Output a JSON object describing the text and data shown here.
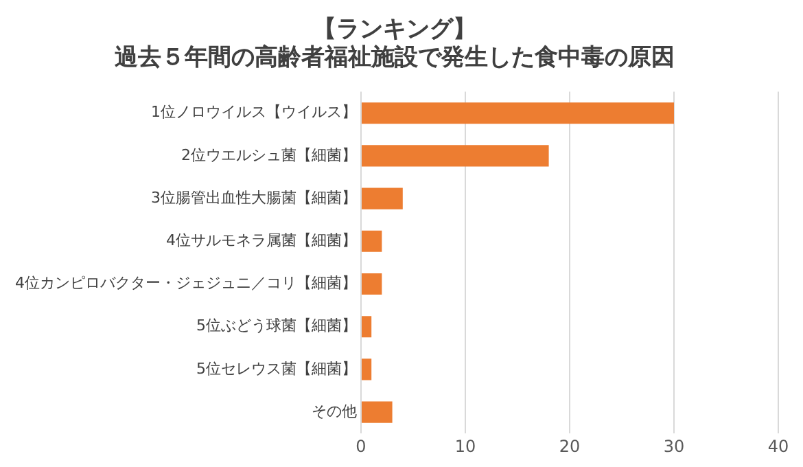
{
  "chart_data": {
    "type": "bar",
    "orientation": "horizontal",
    "title": "【ランキング】",
    "subtitle": "過去５年間の高齢者福祉施設で発生した食中毒の原因",
    "categories": [
      "1位ノロウイルス【ウイルス】",
      "2位ウエルシュ菌【細菌】",
      "3位腸管出血性大腸菌【細菌】",
      "4位サルモネラ属菌【細菌】",
      "4位カンピロバクター・ジェジュニ／コリ【細菌】",
      "5位ぶどう球菌【細菌】",
      "5位セレウス菌【細菌】",
      "その他"
    ],
    "values": [
      30,
      18,
      4,
      2,
      2,
      1,
      1,
      3
    ],
    "color": "#ed7d31",
    "xlim": [
      0,
      40
    ],
    "xticks": [
      0,
      10,
      20,
      30,
      40
    ],
    "grid": "x",
    "legend": false
  }
}
